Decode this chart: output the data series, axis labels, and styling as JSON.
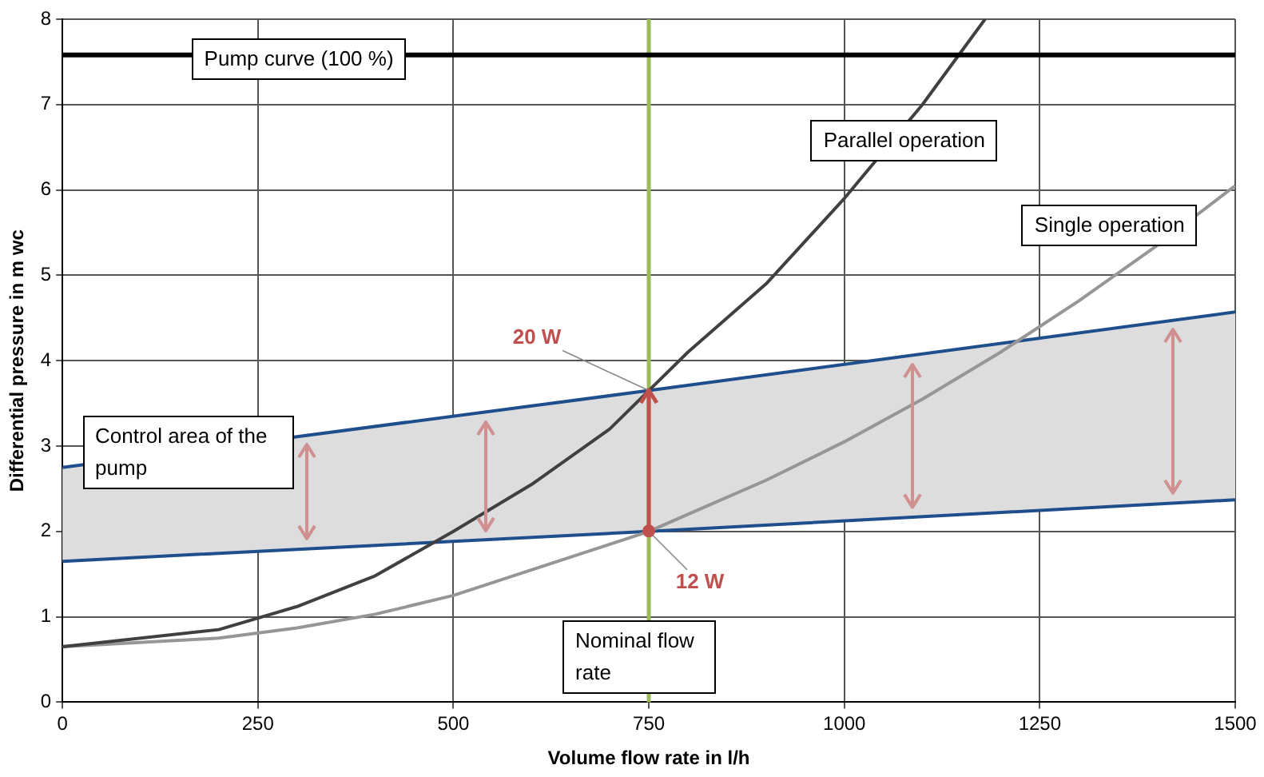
{
  "chart_data": {
    "type": "line",
    "xlabel": "Volume flow rate in l/h",
    "ylabel": "Differential pressure in m wc",
    "xlim": [
      0,
      1500
    ],
    "xticks": [
      0,
      250,
      500,
      750,
      1000,
      1250,
      1500
    ],
    "ylim": [
      0,
      8
    ],
    "yticks": [
      0,
      1,
      2,
      3,
      4,
      5,
      6,
      7,
      8
    ],
    "grid": true,
    "legend": false,
    "marker": "none",
    "line_style": "solid",
    "x": [
      0,
      750,
      1500
    ],
    "series": [
      {
        "name": "Pump curve (100 %)",
        "color": "#000000",
        "x": [
          0,
          1500
        ],
        "values": [
          7.58,
          7.58
        ]
      },
      {
        "name": "Parallel operation",
        "color": "#404040",
        "x": [
          0,
          200,
          300,
          400,
          500,
          600,
          700,
          750,
          800,
          900,
          1000,
          1100,
          1180
        ],
        "values": [
          0.65,
          0.85,
          1.12,
          1.48,
          2.0,
          2.55,
          3.2,
          3.65,
          4.1,
          4.9,
          5.9,
          7.0,
          8.0
        ]
      },
      {
        "name": "Single operation",
        "color": "#969696",
        "x": [
          0,
          200,
          300,
          400,
          500,
          600,
          700,
          750,
          800,
          900,
          1000,
          1100,
          1200,
          1300,
          1400,
          1500
        ],
        "values": [
          0.65,
          0.75,
          0.87,
          1.03,
          1.25,
          1.55,
          1.85,
          2.0,
          2.2,
          2.6,
          3.05,
          3.55,
          4.1,
          4.7,
          5.35,
          6.05
        ]
      },
      {
        "color": "#1f4e8c",
        "values": [
          2.75,
          3.65,
          4.57
        ]
      },
      {
        "color": "#1f4e8c",
        "values": [
          1.65,
          2.0,
          2.37
        ],
        "lower": [
          1.65,
          2.0,
          2.37
        ],
        "upper": [
          2.75,
          3.65,
          4.57
        ]
      }
    ],
    "ref_lines": [
      {
        "axis": "x",
        "value": 750,
        "label": "Nominal flow rate",
        "color": "#9bbb59"
      }
    ],
    "annotations": [
      {
        "text": "20 W",
        "x": 750,
        "y": 3.65
      },
      {
        "text": "12 W",
        "x": 750,
        "y": 2.0
      },
      "Control area of the pump"
    ]
  }
}
